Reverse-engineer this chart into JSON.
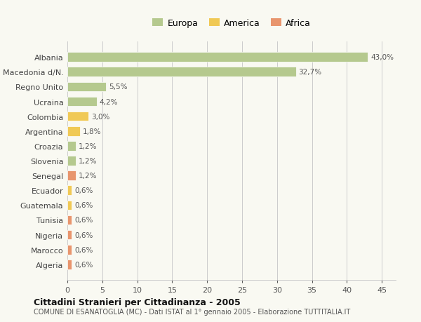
{
  "categories": [
    "Albania",
    "Macedonia d/N.",
    "Regno Unito",
    "Ucraina",
    "Colombia",
    "Argentina",
    "Croazia",
    "Slovenia",
    "Senegal",
    "Ecuador",
    "Guatemala",
    "Tunisia",
    "Nigeria",
    "Marocco",
    "Algeria"
  ],
  "values": [
    43.0,
    32.7,
    5.5,
    4.2,
    3.0,
    1.8,
    1.2,
    1.2,
    1.2,
    0.6,
    0.6,
    0.6,
    0.6,
    0.6,
    0.6
  ],
  "labels": [
    "43,0%",
    "32,7%",
    "5,5%",
    "4,2%",
    "3,0%",
    "1,8%",
    "1,2%",
    "1,2%",
    "1,2%",
    "0,6%",
    "0,6%",
    "0,6%",
    "0,6%",
    "0,6%",
    "0,6%"
  ],
  "continents": [
    "Europa",
    "Europa",
    "Europa",
    "Europa",
    "America",
    "America",
    "Europa",
    "Europa",
    "Africa",
    "America",
    "America",
    "Africa",
    "Africa",
    "Africa",
    "Africa"
  ],
  "colors": {
    "Europa": "#b5c98e",
    "America": "#f0c955",
    "Africa": "#e8956d"
  },
  "legend_labels": [
    "Europa",
    "America",
    "Africa"
  ],
  "legend_colors": [
    "#b5c98e",
    "#f0c955",
    "#e8956d"
  ],
  "title": "Cittadini Stranieri per Cittadinanza - 2005",
  "subtitle": "COMUNE DI ESANATOGLIA (MC) - Dati ISTAT al 1° gennaio 2005 - Elaborazione TUTTITALIA.IT",
  "xlim": [
    0,
    47
  ],
  "xticks": [
    0,
    5,
    10,
    15,
    20,
    25,
    30,
    35,
    40,
    45
  ],
  "background_color": "#f9f9f2",
  "grid_color": "#cccccc"
}
